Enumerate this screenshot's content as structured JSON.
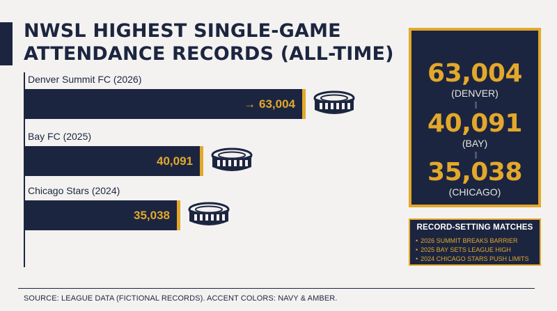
{
  "title": "NWSL HIGHEST SINGLE-GAME ATTENDANCE RECORDS (ALL-TIME)",
  "chart_data": {
    "type": "bar",
    "orientation": "horizontal",
    "title": "NWSL HIGHEST SINGLE-GAME ATTENDANCE RECORDS (ALL-TIME)",
    "categories": [
      "Denver Summit FC (2026)",
      "Bay FC (2025)",
      "Chicago Stars (2024)"
    ],
    "values": [
      63004,
      40091,
      35038
    ],
    "value_labels": [
      "→ 63,004",
      "40,091",
      "35,038"
    ],
    "xlim": [
      0,
      70000
    ],
    "grid": false,
    "colors": {
      "bar": "#1c2540",
      "bar_edge": "#e3a82b",
      "value_text": "#e3a82b"
    }
  },
  "summary_panel": {
    "stats": [
      {
        "value": "63,004",
        "label": "(DENVER)"
      },
      {
        "value": "40,091",
        "label": "(BAY)"
      },
      {
        "value": "35,038",
        "label": "(CHICAGO)"
      }
    ]
  },
  "matches_box": {
    "title": "RECORD-SETTING MATCHES",
    "items": [
      "2026 SUMMIT BREAKS BARRIER",
      "2025 BAY SETS LEAGUE HIGH",
      "2024 CHICAGO STARS PUSH LIMITS"
    ]
  },
  "footer": "SOURCE: LEAGUE DATA (FICTIONAL RECORDS). ACCENT COLORS: NAVY & AMBER.",
  "icons": [
    "stadium-icon"
  ],
  "colors": {
    "navy": "#1c2540",
    "amber": "#e3a82b",
    "background": "#f3f2f0"
  }
}
